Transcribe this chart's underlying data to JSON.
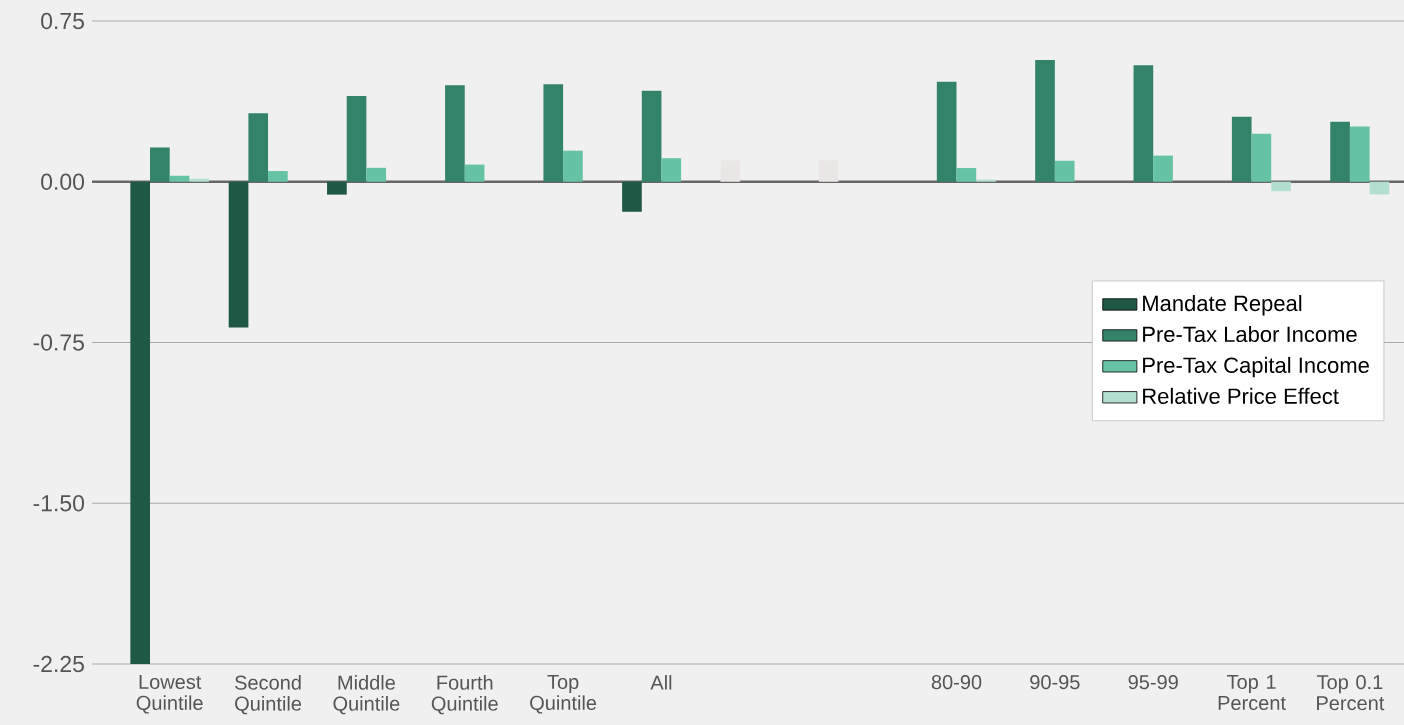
{
  "chart_data": {
    "type": "bar",
    "categories": [
      "Lowest Quintile",
      "Second Quintile",
      "Middle Quintile",
      "Fourth Quintile",
      "Top Quintile",
      "All",
      null,
      null,
      "80-90",
      "90-95",
      "95-99",
      "Top 1 Percent",
      "Top 0.1 Percent"
    ],
    "series": [
      {
        "name": "Mandate Repeal",
        "color": "#1f5845",
        "colors": [
          "#1f5845",
          "#1f5845",
          "#1f5845",
          "#1f5845",
          "#1f5845",
          "#1f5845",
          "#ebe6e6",
          "#ebe6e6",
          "#1f5845",
          "#1f5845",
          "#1f5845",
          "#1f5845",
          "#1f5845"
        ],
        "values": [
          -2.25,
          -0.68,
          -0.06,
          null,
          null,
          -0.14,
          0.1,
          0.1,
          null,
          null,
          null,
          null,
          null
        ]
      },
      {
        "name": "Pre-Tax Labor Income",
        "color": "#33826a",
        "values": [
          0.16,
          0.32,
          0.4,
          0.45,
          0.455,
          0.425,
          null,
          null,
          0.467,
          0.568,
          0.544,
          0.303,
          0.28
        ]
      },
      {
        "name": "Pre-Tax Capital Income",
        "color": "#66c2a5",
        "values": [
          0.028,
          0.05,
          0.065,
          0.08,
          0.145,
          0.11,
          null,
          null,
          0.064,
          0.098,
          0.122,
          0.224,
          0.258
        ]
      },
      {
        "name": "Relative Price Effect",
        "color": "#b2dfd0",
        "values": [
          0.014,
          null,
          null,
          null,
          null,
          null,
          null,
          null,
          0.01,
          null,
          null,
          -0.044,
          -0.059
        ]
      }
    ],
    "ylim": [
      -2.25,
      0.75
    ],
    "yticks": [
      {
        "value": 0.75,
        "label": "0.75"
      },
      {
        "value": 0,
        "label": "0.00"
      },
      {
        "value": -0.75,
        "label": "-0.75"
      },
      {
        "value": -1.5,
        "label": "-1.50"
      },
      {
        "value": -2.25,
        "label": "-2.25"
      }
    ],
    "grid": "y",
    "legend": "right"
  }
}
